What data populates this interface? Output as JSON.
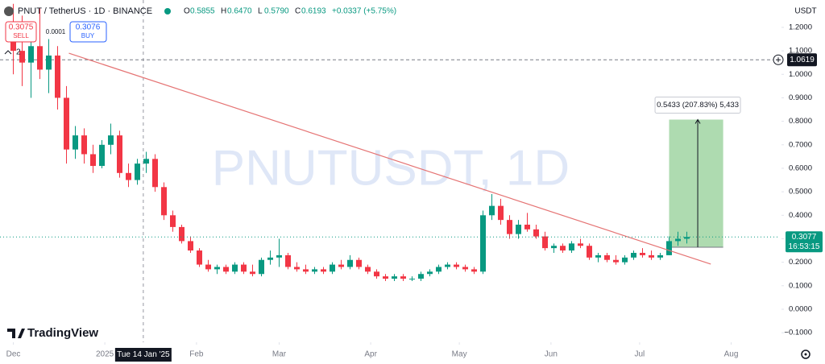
{
  "toolbar": {
    "sell_price": "0.3075",
    "sell": "SELL",
    "spread": "0.0001",
    "buy_price": "0.3076",
    "buy": "BUY",
    "indicators": "2"
  },
  "header": {
    "symbol": "PNUT / TetherUS · 1D · BINANCE",
    "ohlc": [
      {
        "label": "O",
        "value": "0.5855"
      },
      {
        "label": "H",
        "value": "0.6470"
      },
      {
        "label": "L",
        "value": "0.5790"
      },
      {
        "label": "C",
        "value": "0.6193"
      }
    ],
    "change": "+0.0337 (+5.75%)"
  },
  "chart_data": {
    "type": "candlestick",
    "watermark": "PNUTUSDT, 1D",
    "currency": "USDT",
    "brand": "TradingView",
    "up_color": "#089981",
    "down_color": "#f23645",
    "categories": [
      null,
      null,
      null,
      null,
      null,
      null,
      null,
      null,
      null,
      null,
      null,
      null,
      null,
      null,
      null,
      null,
      null,
      null,
      null,
      null,
      null,
      null,
      null,
      null,
      null,
      null,
      null,
      null,
      null,
      null,
      null,
      null,
      null,
      null,
      null,
      null,
      null,
      null,
      null,
      null,
      null,
      null,
      null,
      null,
      null,
      null,
      null,
      null,
      null,
      null,
      null,
      null,
      null,
      null,
      null,
      null,
      null,
      null,
      null,
      null,
      null,
      null,
      null,
      null,
      null,
      null,
      null,
      null,
      null,
      null,
      null,
      null,
      null,
      null,
      null,
      null,
      null
    ],
    "open": [
      1.15,
      1.1,
      1.05,
      1.12,
      1.02,
      1.08,
      0.9,
      0.68,
      0.74,
      0.66,
      0.61,
      0.7,
      0.74,
      0.58,
      0.55,
      0.62,
      0.64,
      0.52,
      0.4,
      0.35,
      0.29,
      0.25,
      0.19,
      0.17,
      0.18,
      0.16,
      0.19,
      0.16,
      0.15,
      0.21,
      0.22,
      0.23,
      0.18,
      0.17,
      0.16,
      0.17,
      0.16,
      0.19,
      0.18,
      0.21,
      0.18,
      0.16,
      0.14,
      0.13,
      0.14,
      0.13,
      0.13,
      0.15,
      0.16,
      0.18,
      0.19,
      0.18,
      0.17,
      0.16,
      0.4,
      0.44,
      0.38,
      0.32,
      0.36,
      0.34,
      0.31,
      0.26,
      0.27,
      0.25,
      0.28,
      0.27,
      0.22,
      0.23,
      0.21,
      0.2,
      0.22,
      0.24,
      0.23,
      0.22,
      0.23,
      0.29,
      0.3
    ],
    "high": [
      1.3,
      1.25,
      1.2,
      1.28,
      1.15,
      1.12,
      0.95,
      0.78,
      0.77,
      0.7,
      0.72,
      0.79,
      0.76,
      0.62,
      0.64,
      0.67,
      0.66,
      0.54,
      0.42,
      0.36,
      0.31,
      0.26,
      0.21,
      0.19,
      0.19,
      0.2,
      0.2,
      0.19,
      0.22,
      0.25,
      0.3,
      0.24,
      0.2,
      0.19,
      0.18,
      0.18,
      0.2,
      0.21,
      0.23,
      0.22,
      0.19,
      0.17,
      0.15,
      0.15,
      0.15,
      0.14,
      0.16,
      0.17,
      0.19,
      0.2,
      0.2,
      0.19,
      0.18,
      0.42,
      0.49,
      0.47,
      0.4,
      0.38,
      0.41,
      0.36,
      0.33,
      0.28,
      0.28,
      0.29,
      0.3,
      0.28,
      0.24,
      0.24,
      0.23,
      0.23,
      0.25,
      0.26,
      0.25,
      0.24,
      0.31,
      0.33,
      0.33
    ],
    "low": [
      1.0,
      0.95,
      0.9,
      0.98,
      0.92,
      0.85,
      0.62,
      0.64,
      0.62,
      0.58,
      0.6,
      0.66,
      0.56,
      0.52,
      0.53,
      0.58,
      0.5,
      0.38,
      0.33,
      0.28,
      0.24,
      0.18,
      0.16,
      0.15,
      0.15,
      0.15,
      0.15,
      0.14,
      0.14,
      0.19,
      0.18,
      0.17,
      0.16,
      0.15,
      0.15,
      0.15,
      0.15,
      0.17,
      0.17,
      0.17,
      0.15,
      0.13,
      0.12,
      0.12,
      0.12,
      0.12,
      0.12,
      0.14,
      0.15,
      0.17,
      0.17,
      0.16,
      0.15,
      0.15,
      0.38,
      0.36,
      0.3,
      0.3,
      0.33,
      0.3,
      0.25,
      0.24,
      0.24,
      0.24,
      0.26,
      0.21,
      0.2,
      0.2,
      0.19,
      0.19,
      0.21,
      0.22,
      0.21,
      0.21,
      0.23,
      0.27,
      0.28
    ],
    "close": [
      1.1,
      1.05,
      1.12,
      1.02,
      1.08,
      0.9,
      0.68,
      0.74,
      0.66,
      0.61,
      0.7,
      0.74,
      0.58,
      0.55,
      0.62,
      0.64,
      0.52,
      0.4,
      0.35,
      0.29,
      0.25,
      0.19,
      0.17,
      0.18,
      0.16,
      0.19,
      0.16,
      0.15,
      0.21,
      0.22,
      0.23,
      0.18,
      0.17,
      0.16,
      0.17,
      0.16,
      0.19,
      0.18,
      0.21,
      0.18,
      0.16,
      0.14,
      0.13,
      0.14,
      0.13,
      0.13,
      0.15,
      0.16,
      0.18,
      0.19,
      0.18,
      0.17,
      0.16,
      0.4,
      0.44,
      0.38,
      0.32,
      0.36,
      0.34,
      0.31,
      0.26,
      0.27,
      0.25,
      0.28,
      0.27,
      0.22,
      0.23,
      0.21,
      0.2,
      0.22,
      0.24,
      0.23,
      0.22,
      0.23,
      0.29,
      0.3,
      0.3077
    ],
    "xlim": [
      -1.5,
      86.5
    ],
    "xticks": [
      {
        "value": 0,
        "label": "Dec"
      },
      {
        "value": 10.33,
        "label": "2025"
      },
      {
        "value": 20.67,
        "label": "Feb"
      },
      {
        "value": 30,
        "label": "Mar"
      },
      {
        "value": 40.33,
        "label": "Apr"
      },
      {
        "value": 50.33,
        "label": "May"
      },
      {
        "value": 60.67,
        "label": "Jun"
      },
      {
        "value": 70.67,
        "label": "Jul"
      },
      {
        "value": 81,
        "label": "Aug"
      }
    ],
    "ylim": [
      -0.1406,
      1.3164
    ],
    "yticks": [
      {
        "value": 1.2,
        "label": "1.2000"
      },
      {
        "value": 1.1,
        "label": "1.1000"
      },
      {
        "value": 1,
        "label": "1.0000"
      },
      {
        "value": 0.9,
        "label": "0.9000"
      },
      {
        "value": 0.8,
        "label": "0.8000"
      },
      {
        "value": 0.7,
        "label": "0.7000"
      },
      {
        "value": 0.6,
        "label": "0.6000"
      },
      {
        "value": 0.5,
        "label": "0.5000"
      },
      {
        "value": 0.4,
        "label": "0.4000"
      },
      {
        "value": 0.3,
        "label": "0.3000"
      },
      {
        "value": 0.2,
        "label": "0.2000"
      },
      {
        "value": 0.1,
        "label": "0.1000"
      },
      {
        "value": 0,
        "label": "0.0000"
      },
      {
        "value": -0.1,
        "label": "−0.1000"
      }
    ],
    "crosshair": {
      "x": 14.67,
      "label": "Tue 14 Jan '25"
    },
    "hline": {
      "value": 1.0619
    },
    "last_price": {
      "value": 0.3077,
      "countdown": "16:53:15"
    },
    "trendline": {
      "x": [
        6.27,
        78.7
      ],
      "y": [
        1.09,
        0.192
      ],
      "color": "#e57373"
    },
    "position": {
      "x": [
        74,
        80.1
      ],
      "entry": 0.264,
      "target": 0.8073,
      "label": "0.5433 (207.83%) 5,433"
    }
  }
}
